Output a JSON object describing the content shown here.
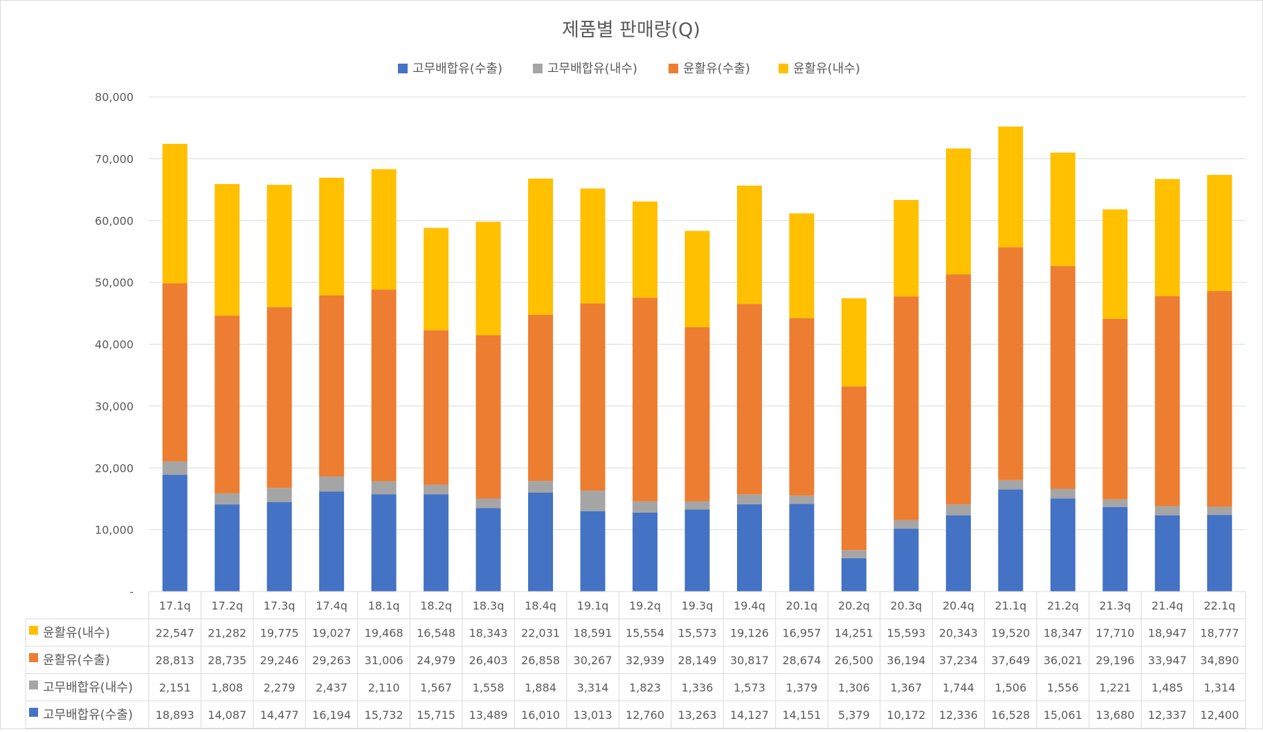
{
  "chart_data": {
    "type": "bar",
    "stacked": true,
    "title": "제품별 판매량(Q)",
    "xlabel": "",
    "ylabel": "",
    "ylim": [
      0,
      80000
    ],
    "yticks": [
      0,
      10000,
      20000,
      30000,
      40000,
      50000,
      60000,
      70000,
      80000
    ],
    "ytick_labels": [
      "-",
      "10,000",
      "20,000",
      "30,000",
      "40,000",
      "50,000",
      "60,000",
      "70,000",
      "80,000"
    ],
    "grid": true,
    "legend_position": "top",
    "categories": [
      "17.1q",
      "17.2q",
      "17.3q",
      "17.4q",
      "18.1q",
      "18.2q",
      "18.3q",
      "18.4q",
      "19.1q",
      "19.2q",
      "19.3q",
      "19.4q",
      "20.1q",
      "20.2q",
      "20.3q",
      "20.4q",
      "21.1q",
      "21.2q",
      "21.3q",
      "21.4q",
      "22.1q"
    ],
    "series": [
      {
        "name": "고무배합유(수출)",
        "color": "#4472C4",
        "values": [
          18893,
          14087,
          14477,
          16194,
          15732,
          15715,
          13489,
          16010,
          13013,
          12760,
          13263,
          14127,
          14151,
          5379,
          10172,
          12336,
          16528,
          15061,
          13680,
          12337,
          12400
        ]
      },
      {
        "name": "고무배합유(내수)",
        "color": "#A5A5A5",
        "values": [
          2151,
          1808,
          2279,
          2437,
          2110,
          1567,
          1558,
          1884,
          3314,
          1823,
          1336,
          1573,
          1379,
          1306,
          1367,
          1744,
          1506,
          1556,
          1221,
          1485,
          1314
        ]
      },
      {
        "name": "윤활유(수출)",
        "color": "#ED7D31",
        "values": [
          28813,
          28735,
          29246,
          29263,
          31006,
          24979,
          26403,
          26858,
          30267,
          32939,
          28149,
          30817,
          28674,
          26500,
          36194,
          37234,
          37649,
          36021,
          29196,
          33947,
          34890
        ]
      },
      {
        "name": "윤활유(내수)",
        "color": "#FFC000",
        "values": [
          22547,
          21282,
          19775,
          19027,
          19468,
          16548,
          18343,
          22031,
          18591,
          15554,
          15573,
          19126,
          16957,
          14251,
          15593,
          20343,
          19520,
          18347,
          17710,
          18947,
          18777
        ]
      }
    ],
    "table_row_order": [
      "윤활유(내수)",
      "윤활유(수출)",
      "고무배합유(내수)",
      "고무배합유(수출)"
    ]
  }
}
